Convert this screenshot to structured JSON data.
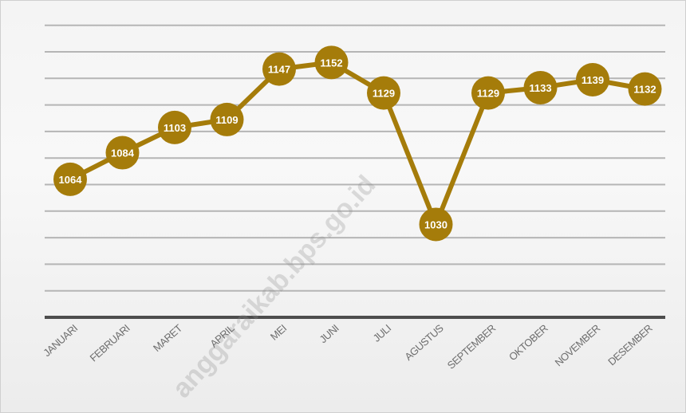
{
  "chart_data": {
    "type": "line",
    "categories": [
      "JANUARI",
      "FEBRUARI",
      "MARET",
      "APRIL",
      "MEI",
      "JUNI",
      "JULI",
      "AGUSTUS",
      "SEPTEMBER",
      "OKTOBER",
      "NOVEMBER",
      "DESEMBER"
    ],
    "series": [
      {
        "values": [
          1064,
          1084,
          1103,
          1109,
          1147,
          1152,
          1129,
          1030,
          1129,
          1133,
          1139,
          1132
        ]
      }
    ],
    "data_labels": [
      "1064",
      "1084",
      "1103",
      "1109",
      "1147",
      "1152",
      "1129",
      "1030",
      "1129",
      "1133",
      "1139",
      "1132"
    ],
    "title": "",
    "xlabel": "",
    "ylabel": "",
    "ylim": [
      960,
      1180
    ],
    "grid": true,
    "y_tick_labels_shown": false,
    "legend": "none",
    "colors": {
      "series": "#a57c0a",
      "data_label_text": "#ffffff",
      "gridline": "#b5b5b5",
      "baseline": "#4d4d4d",
      "tick_label": "#6e6e6e"
    },
    "watermark": "anggaraikab.bps.go.id"
  }
}
